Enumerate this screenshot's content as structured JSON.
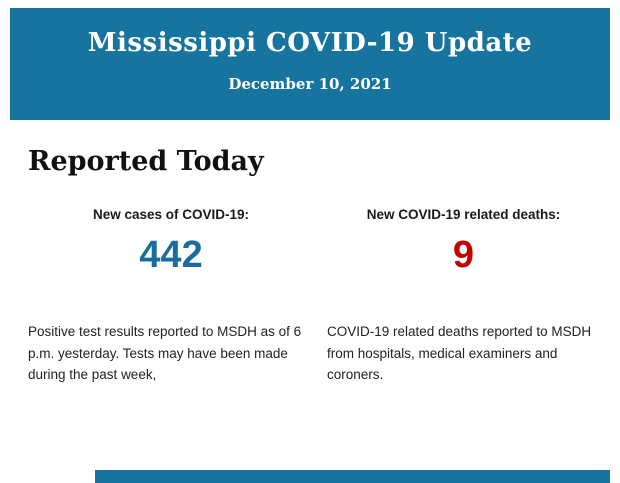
{
  "banner": {
    "title": "Mississippi COVID-19 Update",
    "date": "December 10, 2021",
    "bg_color": "#17749e"
  },
  "section": {
    "heading": "Reported Today"
  },
  "stats": [
    {
      "label": "New cases of COVID-19:",
      "value": "442",
      "value_color": "#1b6d9d",
      "description": "Positive test results reported to MSDH as of 6 p.m. yesterday. Tests may have been made during the past week,"
    },
    {
      "label": "New COVID-19 related deaths:",
      "value": "9",
      "value_color": "#c40000",
      "description": "COVID-19 related deaths reported to MSDH from hospitals, medical examiners and coroners."
    }
  ]
}
